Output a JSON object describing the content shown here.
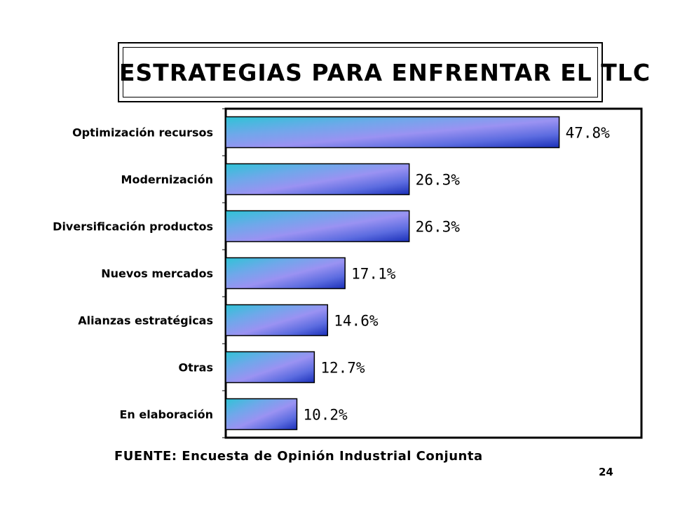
{
  "page": {
    "title": "ESTRATEGIAS PARA ENFRENTAR EL TLC",
    "source": "FUENTE: Encuesta de Opinión Industrial Conjunta",
    "page_number": "24"
  },
  "chart_data": {
    "type": "bar",
    "orientation": "horizontal",
    "title": "ESTRATEGIAS PARA ENFRENTAR EL TLC",
    "categories": [
      "Optimización recursos",
      "Modernización",
      "Diversificación productos",
      "Nuevos mercados",
      "Alianzas estratégicas",
      "Otras",
      "En elaboración"
    ],
    "values": [
      47.8,
      26.3,
      26.3,
      17.1,
      14.6,
      12.7,
      10.2
    ],
    "value_labels": [
      "47.8%",
      "26.3%",
      "26.3%",
      "17.1%",
      "14.6%",
      "12.7%",
      "10.2%"
    ],
    "xlim": [
      0,
      60
    ],
    "grid": false,
    "legend": "none",
    "colors": {
      "bar_light": "#2ec4d6",
      "bar_mid": "#8a8cf0",
      "bar_dark": "#1a2fb8",
      "frame": "#000000"
    }
  }
}
